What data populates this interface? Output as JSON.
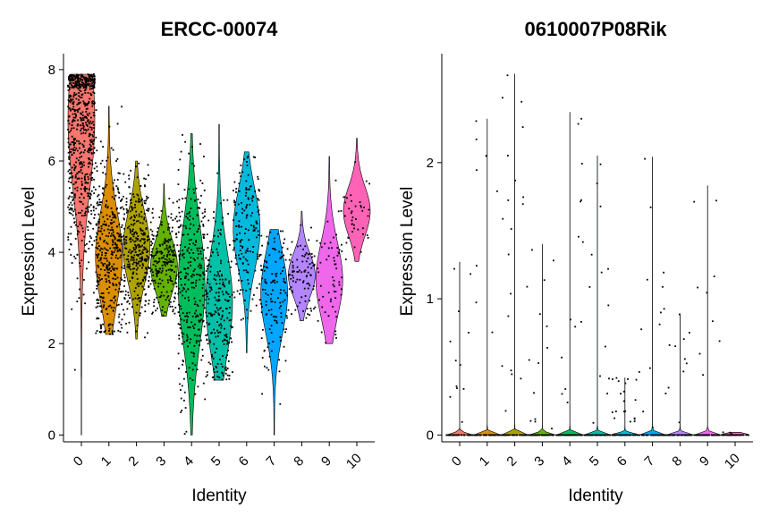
{
  "chart_data": [
    {
      "type": "violin",
      "title": "ERCC-00074",
      "xlabel": "Identity",
      "ylabel": "Expression Level",
      "ylim": [
        -0.15,
        8.35
      ],
      "yticks": [
        0,
        2,
        4,
        6,
        8
      ],
      "categories": [
        "0",
        "1",
        "2",
        "3",
        "4",
        "5",
        "6",
        "7",
        "8",
        "9",
        "10"
      ],
      "colors": [
        "#F8766D",
        "#DB8E00",
        "#AEA200",
        "#64B200",
        "#00BD5C",
        "#00C1A7",
        "#00BADE",
        "#00A6FF",
        "#B385FF",
        "#EF67EB",
        "#FF63B6"
      ],
      "series": [
        {
          "category": "0",
          "min": 0.0,
          "max": 7.9,
          "median": 6.9,
          "n_cells": 700
        },
        {
          "category": "1",
          "min": 2.2,
          "max": 7.2,
          "median": 3.9,
          "n_cells": 380
        },
        {
          "category": "2",
          "min": 2.1,
          "max": 6.0,
          "median": 4.1,
          "n_cells": 340
        },
        {
          "category": "3",
          "min": 2.6,
          "max": 5.5,
          "median": 3.7,
          "n_cells": 230
        },
        {
          "category": "4",
          "min": 0.0,
          "max": 6.6,
          "median": 3.3,
          "n_cells": 300
        },
        {
          "category": "5",
          "min": 1.2,
          "max": 6.8,
          "median": 2.9,
          "n_cells": 230
        },
        {
          "category": "6",
          "min": 1.8,
          "max": 6.2,
          "median": 4.5,
          "n_cells": 160
        },
        {
          "category": "7",
          "min": 0.0,
          "max": 4.5,
          "median": 3.1,
          "n_cells": 130
        },
        {
          "category": "8",
          "min": 2.5,
          "max": 4.9,
          "median": 3.5,
          "n_cells": 90
        },
        {
          "category": "9",
          "min": 2.0,
          "max": 6.1,
          "median": 3.4,
          "n_cells": 60
        },
        {
          "category": "10",
          "min": 3.8,
          "max": 6.5,
          "median": 4.9,
          "n_cells": 40
        }
      ]
    },
    {
      "type": "violin",
      "title": "0610007P08Rik",
      "xlabel": "Identity",
      "ylabel": "Expression Level",
      "ylim": [
        -0.05,
        2.8
      ],
      "yticks": [
        0,
        1,
        2
      ],
      "categories": [
        "0",
        "1",
        "2",
        "3",
        "4",
        "5",
        "6",
        "7",
        "8",
        "9",
        "10"
      ],
      "colors": [
        "#F8766D",
        "#DB8E00",
        "#AEA200",
        "#64B200",
        "#00BD5C",
        "#00C1A7",
        "#00BADE",
        "#00A6FF",
        "#B385FF",
        "#EF67EB",
        "#FF63B6"
      ],
      "series": [
        {
          "category": "0",
          "min": 0.0,
          "max": 1.27,
          "median": 0.0,
          "n_cells": 700
        },
        {
          "category": "1",
          "min": 0.0,
          "max": 2.32,
          "median": 0.0,
          "n_cells": 380
        },
        {
          "category": "2",
          "min": 0.0,
          "max": 2.65,
          "median": 0.0,
          "n_cells": 340
        },
        {
          "category": "3",
          "min": 0.0,
          "max": 1.4,
          "median": 0.0,
          "n_cells": 230
        },
        {
          "category": "4",
          "min": 0.0,
          "max": 2.37,
          "median": 0.0,
          "n_cells": 300
        },
        {
          "category": "5",
          "min": 0.0,
          "max": 2.05,
          "median": 0.0,
          "n_cells": 230
        },
        {
          "category": "6",
          "min": 0.0,
          "max": 0.42,
          "median": 0.0,
          "n_cells": 160
        },
        {
          "category": "7",
          "min": 0.0,
          "max": 2.04,
          "median": 0.0,
          "n_cells": 130
        },
        {
          "category": "8",
          "min": 0.0,
          "max": 0.89,
          "median": 0.0,
          "n_cells": 90
        },
        {
          "category": "9",
          "min": 0.0,
          "max": 1.83,
          "median": 0.0,
          "n_cells": 60
        },
        {
          "category": "10",
          "min": 0.0,
          "max": 0.02,
          "median": 0.0,
          "n_cells": 40
        }
      ]
    }
  ]
}
